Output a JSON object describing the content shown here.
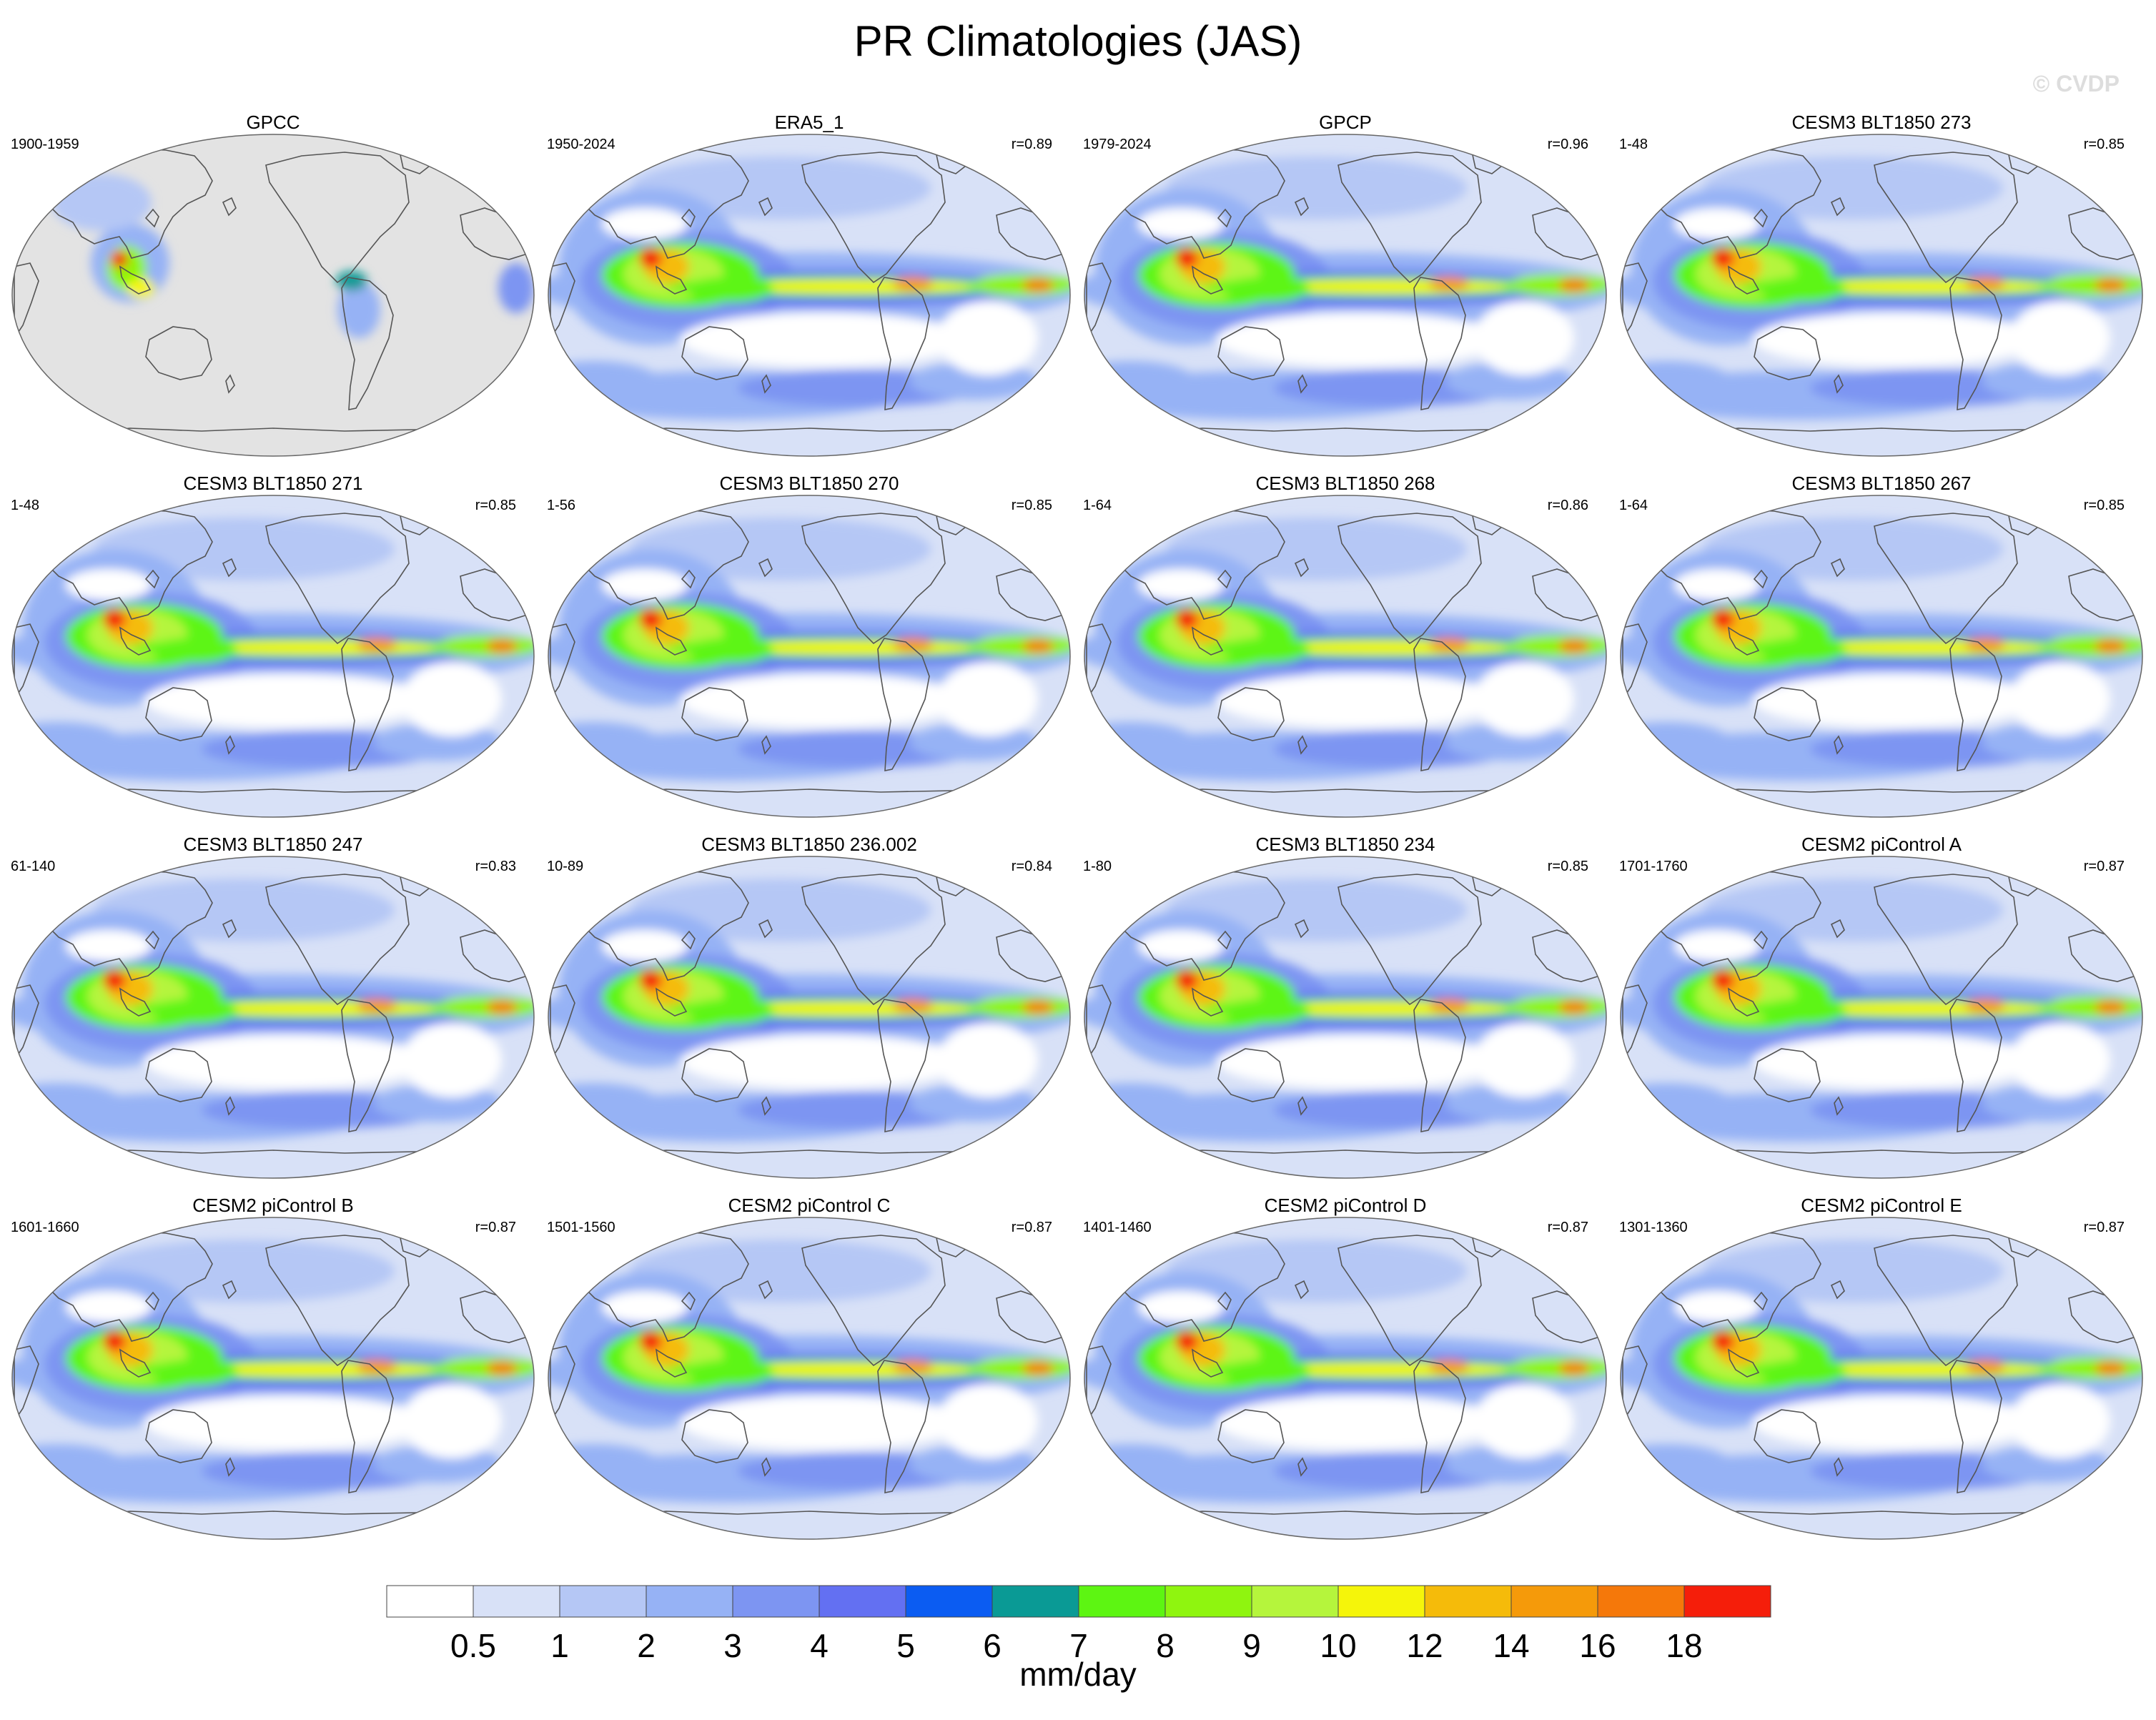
{
  "chart_data": {
    "type": "heatmap",
    "title": "PR Climatologies (JAS)",
    "watermark": "© CVDP",
    "colorbar": {
      "label": "mm/day",
      "tick_labels": [
        "0.5",
        "1",
        "2",
        "3",
        "4",
        "5",
        "6",
        "7",
        "8",
        "9",
        "10",
        "12",
        "14",
        "16",
        "18"
      ],
      "levels": [
        0.5,
        1,
        2,
        3,
        4,
        5,
        6,
        7,
        8,
        9,
        10,
        12,
        14,
        16,
        18
      ],
      "colors": [
        "#ffffff",
        "#d8e1f7",
        "#b5c7f5",
        "#96b2f5",
        "#7d95f2",
        "#6370f2",
        "#0b5cf2",
        "#0a9a95",
        "#5df512",
        "#8ff50f",
        "#b5f53c",
        "#f5f50a",
        "#f5bb0a",
        "#f59a0a",
        "#f5780a",
        "#f51e0a"
      ]
    },
    "panels": [
      {
        "title": "GPCC",
        "years": "1900-1959",
        "r": "",
        "land_only": true
      },
      {
        "title": "ERA5_1",
        "years": "1950-2024",
        "r": "r=0.89"
      },
      {
        "title": "GPCP",
        "years": "1979-2024",
        "r": "r=0.96"
      },
      {
        "title": "CESM3 BLT1850 273",
        "years": "1-48",
        "r": "r=0.85"
      },
      {
        "title": "CESM3 BLT1850 271",
        "years": "1-48",
        "r": "r=0.85"
      },
      {
        "title": "CESM3 BLT1850 270",
        "years": "1-56",
        "r": "r=0.85"
      },
      {
        "title": "CESM3 BLT1850 268",
        "years": "1-64",
        "r": "r=0.86"
      },
      {
        "title": "CESM3 BLT1850 267",
        "years": "1-64",
        "r": "r=0.85"
      },
      {
        "title": "CESM3 BLT1850 247",
        "years": "61-140",
        "r": "r=0.83"
      },
      {
        "title": "CESM3 BLT1850 236.002",
        "years": "10-89",
        "r": "r=0.84"
      },
      {
        "title": "CESM3 BLT1850 234",
        "years": "1-80",
        "r": "r=0.85"
      },
      {
        "title": "CESM2 piControl A",
        "years": "1701-1760",
        "r": "r=0.87"
      },
      {
        "title": "CESM2 piControl B",
        "years": "1601-1660",
        "r": "r=0.87"
      },
      {
        "title": "CESM2 piControl C",
        "years": "1501-1560",
        "r": "r=0.87"
      },
      {
        "title": "CESM2 piControl D",
        "years": "1401-1460",
        "r": "r=0.87"
      },
      {
        "title": "CESM2 piControl E",
        "years": "1301-1360",
        "r": "r=0.87"
      }
    ]
  }
}
